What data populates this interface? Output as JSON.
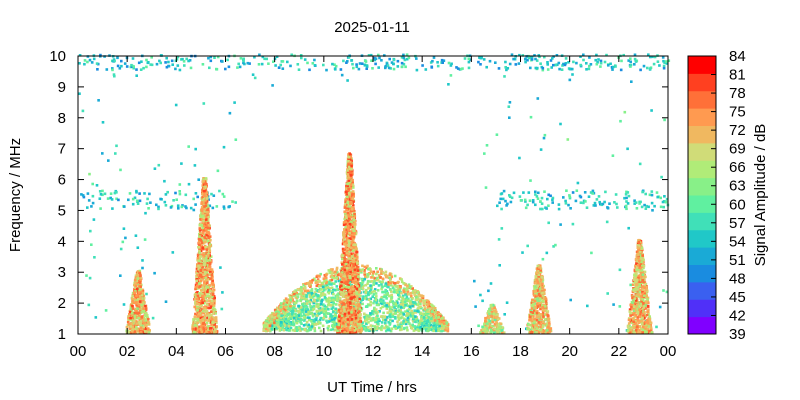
{
  "chart_data": {
    "type": "heatmap",
    "title": "2025-01-11",
    "xlabel": "UT Time / hrs",
    "ylabel": "Frequency / MHz",
    "xlim": [
      0,
      24
    ],
    "ylim": [
      1,
      10
    ],
    "x_ticks": [
      "00",
      "02",
      "04",
      "06",
      "08",
      "10",
      "12",
      "14",
      "16",
      "18",
      "20",
      "22",
      "00"
    ],
    "y_ticks": [
      "1",
      "2",
      "3",
      "4",
      "5",
      "6",
      "7",
      "8",
      "9",
      "10"
    ],
    "grid": false,
    "colorbar": {
      "label": "Signal Amplitude / dB",
      "min": 39,
      "max": 84,
      "ticks": [
        "84",
        "81",
        "78",
        "75",
        "72",
        "69",
        "66",
        "63",
        "60",
        "57",
        "54",
        "51",
        "48",
        "45",
        "42",
        "39"
      ],
      "colors": [
        "#8000ff",
        "#5030f8",
        "#3a60f0",
        "#1a8ce0",
        "#1aaad6",
        "#20c8c8",
        "#40e0b8",
        "#60f0a0",
        "#88f088",
        "#b0ec78",
        "#d0dc78",
        "#f0b860",
        "#ff9a50",
        "#ff7038",
        "#ff4020",
        "#ff0000"
      ]
    },
    "features": [
      {
        "name": "sporadic-band-low",
        "t": [
          0.0,
          24.0
        ],
        "f": [
          5.0,
          5.6
        ],
        "amplitude_db": 55
      },
      {
        "name": "top-band",
        "t": [
          0.0,
          24.0
        ],
        "f": [
          9.5,
          10.0
        ],
        "amplitude_db": 54
      },
      {
        "name": "burst-0230",
        "t": 2.4,
        "f_top": 3.0,
        "amplitude_db": 80
      },
      {
        "name": "burst-0510",
        "t": 5.1,
        "f_top": 6.0,
        "amplitude_db": 81
      },
      {
        "name": "burst-1100",
        "t": 11.0,
        "f_top": 6.8,
        "amplitude_db": 82
      },
      {
        "name": "burst-1650",
        "t": 16.8,
        "f_top": 1.9,
        "amplitude_db": 76
      },
      {
        "name": "burst-1840",
        "t": 18.7,
        "f_top": 3.2,
        "amplitude_db": 79
      },
      {
        "name": "burst-2250",
        "t": 22.8,
        "f_top": 4.0,
        "amplitude_db": 80
      },
      {
        "name": "daytime-arc",
        "t": [
          7.5,
          15.0
        ],
        "f": [
          1.3,
          3.2
        ],
        "amplitude_db": 62
      }
    ]
  }
}
